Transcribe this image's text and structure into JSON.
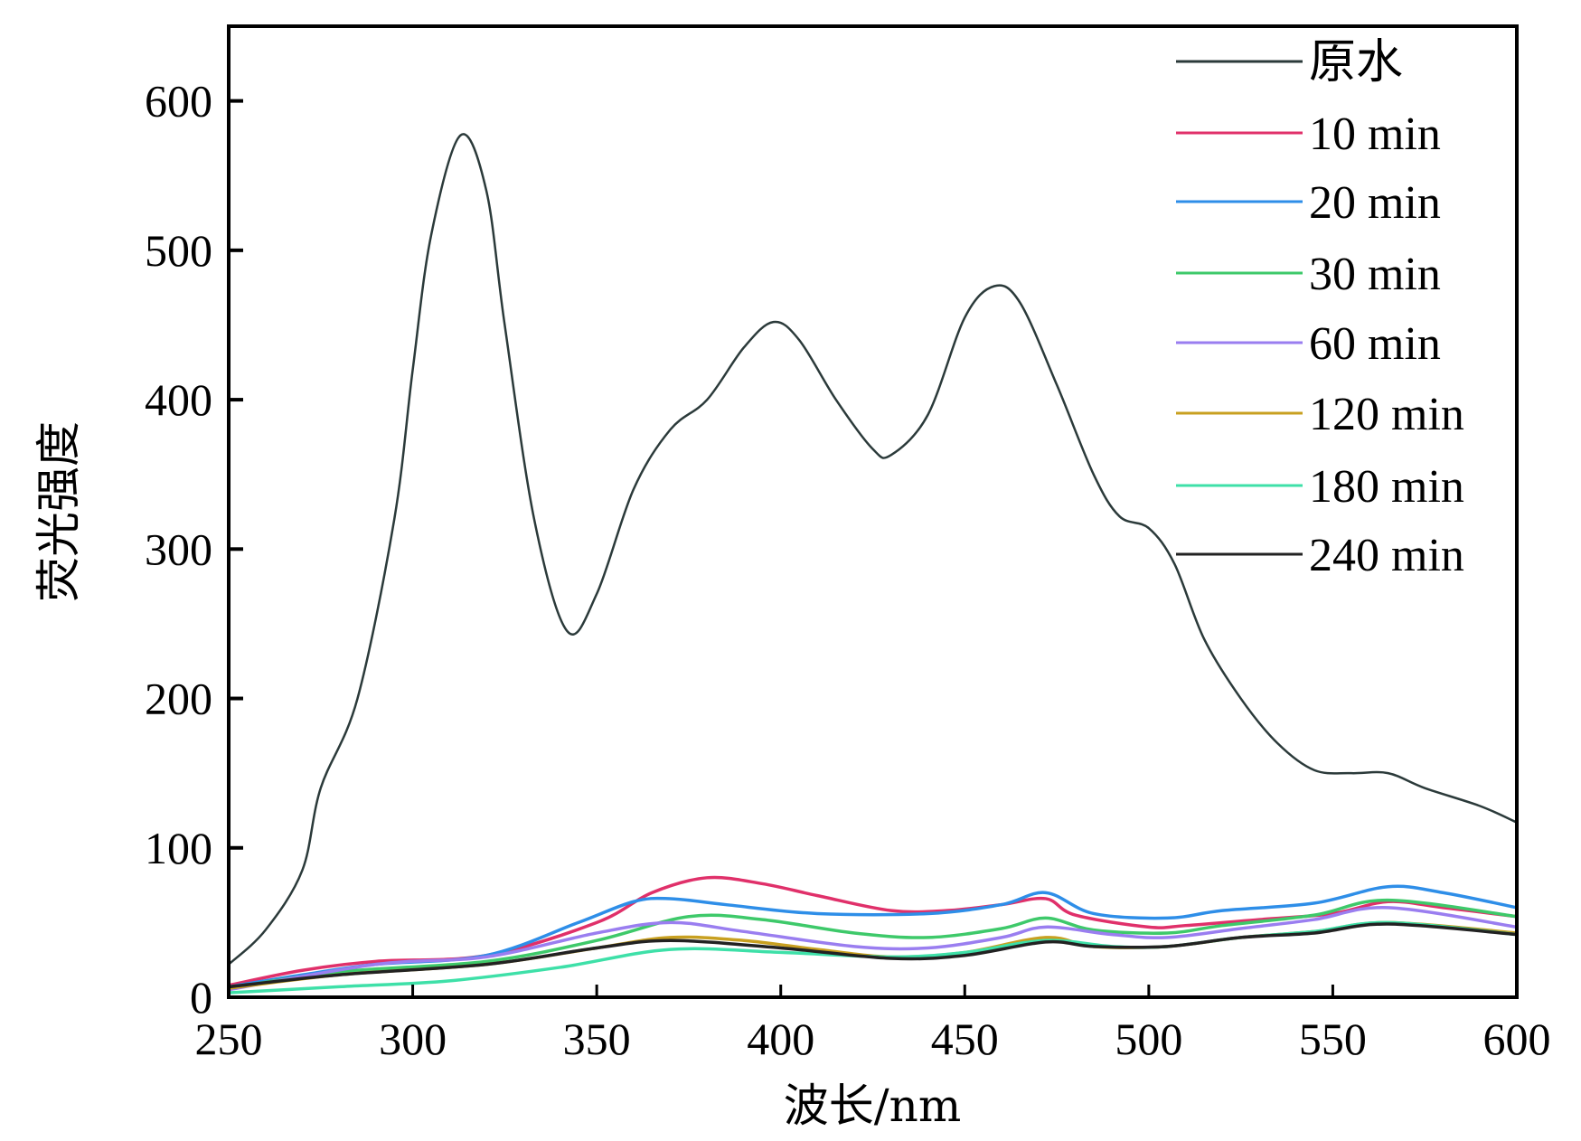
{
  "chart_data": {
    "type": "line",
    "title": "",
    "xlabel": "波长/nm",
    "ylabel": "荧光强度",
    "xlim": [
      250,
      600
    ],
    "ylim": [
      0,
      650
    ],
    "xticks": [
      250,
      300,
      350,
      400,
      450,
      500,
      550,
      600
    ],
    "yticks": [
      0,
      100,
      200,
      300,
      400,
      500,
      600
    ],
    "grid": false,
    "legend_position": "top-right",
    "series": [
      {
        "name": "原水",
        "color": "#2b3a3a",
        "x": [
          250,
          260,
          270,
          275,
          285,
          295,
          300,
          305,
          313,
          320,
          325,
          333,
          342,
          350,
          360,
          370,
          380,
          390,
          398,
          405,
          415,
          425,
          430,
          440,
          450,
          458,
          465,
          475,
          485,
          492,
          500,
          507,
          515,
          525,
          535,
          545,
          555,
          565,
          575,
          590,
          600
        ],
        "y": [
          22,
          45,
          85,
          140,
          200,
          320,
          420,
          510,
          577,
          540,
          450,
          320,
          245,
          270,
          340,
          380,
          400,
          435,
          452,
          440,
          400,
          367,
          363,
          390,
          455,
          476,
          465,
          410,
          350,
          322,
          314,
          290,
          240,
          200,
          170,
          152,
          150,
          150,
          140,
          128,
          117
        ]
      },
      {
        "name": "10 min",
        "color": "#e0306a",
        "x": [
          250,
          270,
          290,
          320,
          350,
          365,
          380,
          395,
          410,
          430,
          445,
          460,
          472,
          480,
          500,
          510,
          530,
          550,
          565,
          580,
          600
        ],
        "y": [
          8,
          18,
          24,
          28,
          50,
          70,
          80,
          76,
          68,
          58,
          58,
          62,
          66,
          55,
          47,
          48,
          52,
          56,
          64,
          60,
          54
        ]
      },
      {
        "name": "20 min",
        "color": "#2e8ee8",
        "x": [
          250,
          270,
          290,
          320,
          345,
          360,
          370,
          385,
          410,
          440,
          460,
          472,
          485,
          505,
          520,
          545,
          565,
          580,
          600
        ],
        "y": [
          7,
          15,
          22,
          28,
          50,
          64,
          66,
          62,
          56,
          56,
          62,
          70,
          56,
          53,
          58,
          63,
          74,
          70,
          60
        ]
      },
      {
        "name": "30 min",
        "color": "#3ec96a",
        "x": [
          250,
          280,
          320,
          350,
          375,
          395,
          420,
          440,
          460,
          472,
          485,
          505,
          520,
          545,
          565,
          600
        ],
        "y": [
          6,
          17,
          24,
          38,
          54,
          52,
          43,
          40,
          46,
          53,
          45,
          43,
          48,
          55,
          65,
          54
        ]
      },
      {
        "name": "60 min",
        "color": "#9a7ef0",
        "x": [
          250,
          290,
          320,
          350,
          370,
          390,
          420,
          440,
          460,
          472,
          490,
          505,
          525,
          545,
          565,
          600
        ],
        "y": [
          5,
          22,
          27,
          43,
          50,
          44,
          34,
          33,
          40,
          47,
          42,
          40,
          46,
          52,
          60,
          47
        ]
      },
      {
        "name": "120 min",
        "color": "#c8a020",
        "x": [
          250,
          280,
          320,
          350,
          370,
          390,
          410,
          430,
          450,
          472,
          485,
          505,
          525,
          545,
          565,
          600
        ],
        "y": [
          6,
          15,
          22,
          33,
          40,
          38,
          32,
          27,
          30,
          40,
          34,
          34,
          40,
          44,
          50,
          43
        ]
      },
      {
        "name": "180 min",
        "color": "#3ee0a8",
        "x": [
          250,
          280,
          310,
          340,
          370,
          400,
          430,
          450,
          472,
          490,
          505,
          525,
          545,
          565,
          600
        ],
        "y": [
          3,
          7,
          11,
          20,
          32,
          30,
          27,
          30,
          38,
          34,
          34,
          40,
          44,
          50,
          42
        ]
      },
      {
        "name": "240 min",
        "color": "#222222",
        "x": [
          250,
          280,
          320,
          350,
          370,
          400,
          430,
          450,
          472,
          485,
          505,
          525,
          545,
          565,
          600
        ],
        "y": [
          7,
          15,
          22,
          33,
          38,
          33,
          26,
          28,
          37,
          34,
          34,
          40,
          43,
          49,
          42
        ]
      }
    ]
  }
}
